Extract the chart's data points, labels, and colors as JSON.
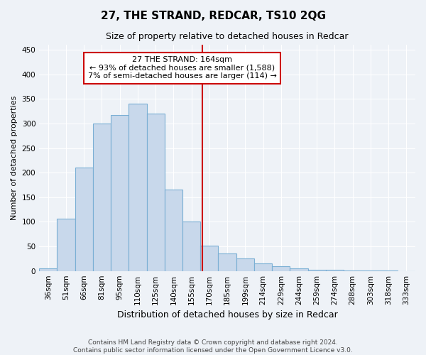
{
  "title": "27, THE STRAND, REDCAR, TS10 2QG",
  "subtitle": "Size of property relative to detached houses in Redcar",
  "xlabel": "Distribution of detached houses by size in Redcar",
  "ylabel": "Number of detached properties",
  "footer_line1": "Contains HM Land Registry data © Crown copyright and database right 2024.",
  "footer_line2": "Contains public sector information licensed under the Open Government Licence v3.0.",
  "annotation_line1": "27 THE STRAND: 164sqm",
  "annotation_line2": "← 93% of detached houses are smaller (1,588)",
  "annotation_line3": "7% of semi-detached houses are larger (114) →",
  "bar_color": "#c8d8eb",
  "bar_edge_color": "#7aafd4",
  "vline_color": "#cc0000",
  "bin_labels": [
    "36sqm",
    "51sqm",
    "66sqm",
    "81sqm",
    "95sqm",
    "110sqm",
    "125sqm",
    "140sqm",
    "155sqm",
    "170sqm",
    "185sqm",
    "199sqm",
    "214sqm",
    "229sqm",
    "244sqm",
    "259sqm",
    "274sqm",
    "288sqm",
    "303sqm",
    "318sqm",
    "333sqm"
  ],
  "counts": [
    5,
    107,
    210,
    300,
    317,
    340,
    320,
    165,
    100,
    52,
    35,
    26,
    16,
    10,
    5,
    3,
    2,
    1,
    1,
    1,
    0
  ],
  "vline_x_index": 8.6,
  "ylim": [
    0,
    460
  ],
  "yticks": [
    0,
    50,
    100,
    150,
    200,
    250,
    300,
    350,
    400,
    450
  ],
  "background_color": "#eef2f7",
  "grid_color": "#ffffff",
  "title_fontsize": 11,
  "subtitle_fontsize": 9,
  "ylabel_fontsize": 8,
  "xlabel_fontsize": 9,
  "tick_fontsize": 7.5,
  "annotation_fontsize": 8,
  "footer_fontsize": 6.5
}
